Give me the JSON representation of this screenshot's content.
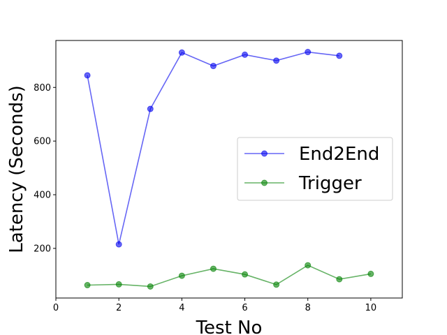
{
  "chart_data": {
    "type": "line",
    "xlabel": "Test No",
    "ylabel": "Latency (Seconds)",
    "xlim": [
      0,
      11
    ],
    "ylim": [
      15,
      975
    ],
    "xticks": [
      0,
      2,
      4,
      6,
      8,
      10
    ],
    "yticks": [
      200,
      400,
      600,
      800
    ],
    "grid": false,
    "legend_position": "center-right",
    "series": [
      {
        "name": "End2End",
        "color": "#0000ee",
        "x": [
          1,
          2,
          3,
          4,
          5,
          6,
          7,
          8,
          9
        ],
        "y": [
          845,
          215,
          720,
          930,
          880,
          922,
          900,
          932,
          918
        ]
      },
      {
        "name": "Trigger",
        "color": "#008000",
        "x": [
          1,
          2,
          3,
          4,
          5,
          6,
          7,
          8,
          9,
          10
        ],
        "y": [
          63,
          66,
          58,
          98,
          124,
          103,
          65,
          137,
          85,
          105
        ]
      }
    ]
  }
}
